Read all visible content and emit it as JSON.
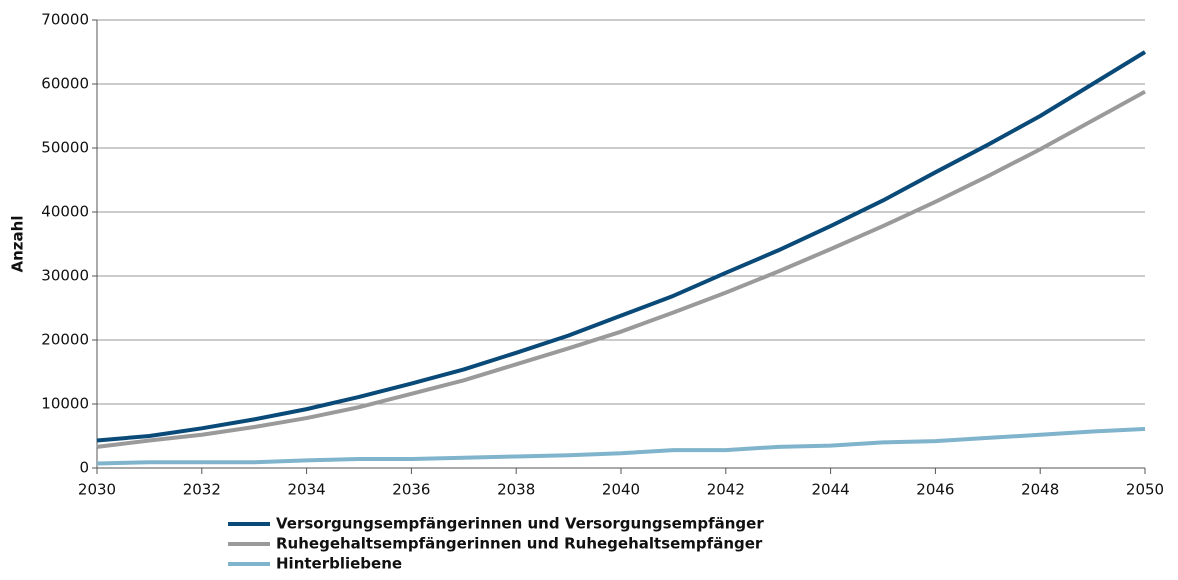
{
  "chart_data": {
    "type": "line",
    "y_label": "Anzahl",
    "x": [
      2030,
      2031,
      2032,
      2033,
      2034,
      2035,
      2036,
      2037,
      2038,
      2039,
      2040,
      2041,
      2042,
      2043,
      2044,
      2045,
      2046,
      2047,
      2048,
      2049,
      2050
    ],
    "series": [
      {
        "name": "Versorgungsempfängerinnen und Versorgungsempfänger",
        "color": "#0a4a78",
        "values": [
          4300,
          5000,
          6200,
          7600,
          9200,
          11100,
          13200,
          15400,
          18000,
          20700,
          23800,
          26900,
          30500,
          34000,
          37800,
          41800,
          46200,
          50500,
          55000,
          60000,
          65000
        ]
      },
      {
        "name": "Ruhegehaltsempfängerinnen und Ruhegehaltsempfänger",
        "color": "#9a9a9a",
        "values": [
          3300,
          4300,
          5200,
          6400,
          7800,
          9500,
          11600,
          13700,
          16200,
          18700,
          21300,
          24300,
          27400,
          30700,
          34200,
          37800,
          41600,
          45600,
          49800,
          54300,
          58800
        ]
      },
      {
        "name": "Hinterbliebene",
        "color": "#80b3cc",
        "values": [
          700,
          900,
          900,
          900,
          1200,
          1400,
          1400,
          1600,
          1800,
          2000,
          2300,
          2800,
          2800,
          3300,
          3500,
          4000,
          4200,
          4700,
          5200,
          5700,
          6100
        ]
      }
    ],
    "xlim": [
      2030,
      2050
    ],
    "xticks": [
      2030,
      2032,
      2034,
      2036,
      2038,
      2040,
      2042,
      2044,
      2046,
      2048,
      2050
    ],
    "ylim": [
      0,
      70000
    ],
    "yticks": [
      0,
      10000,
      20000,
      30000,
      40000,
      50000,
      60000,
      70000
    ],
    "grid": true,
    "legend": "bottom"
  }
}
